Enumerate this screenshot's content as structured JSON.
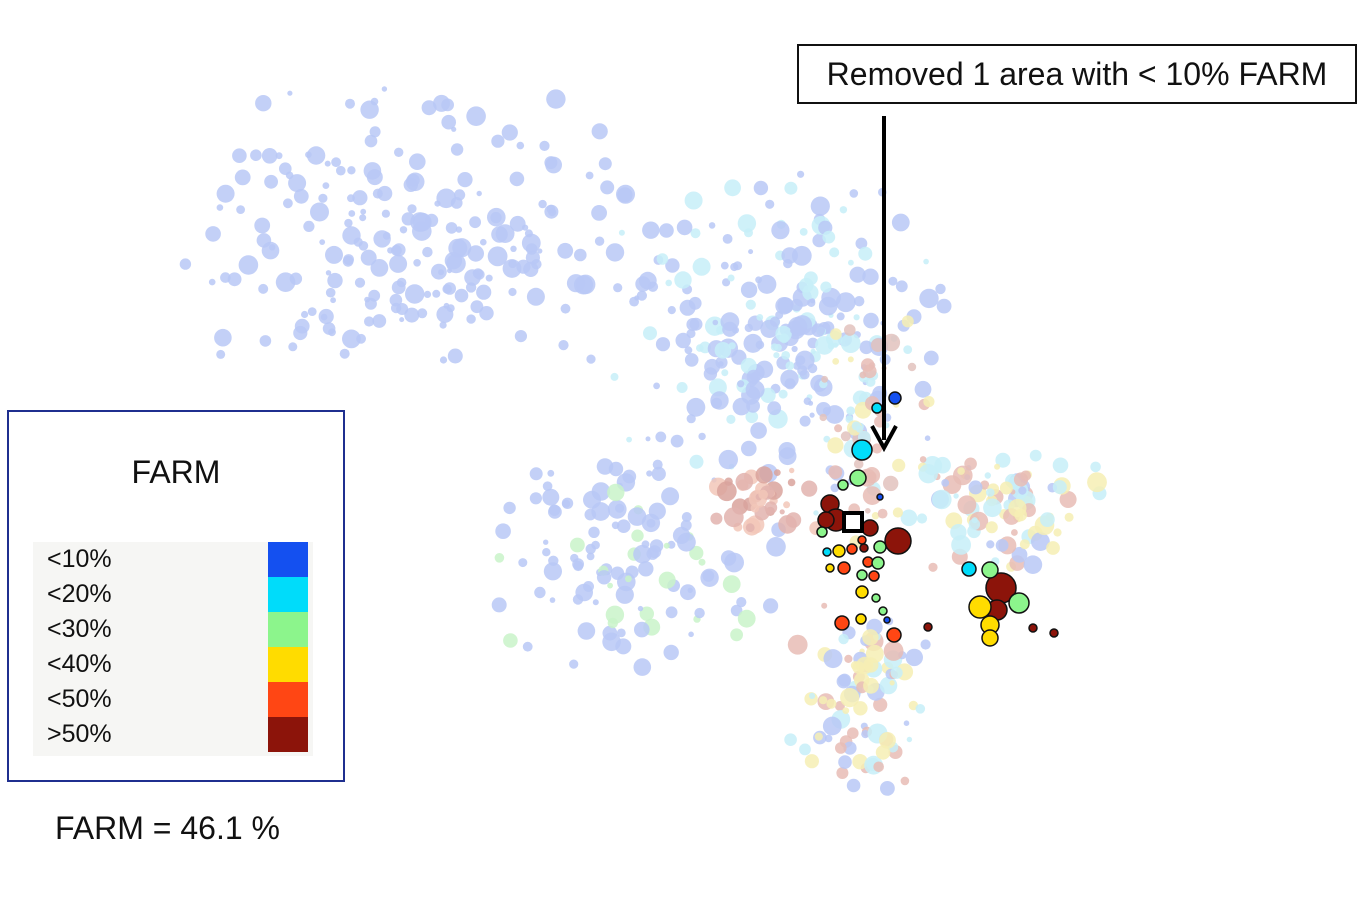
{
  "chart_data": {
    "type": "scatter",
    "title": "",
    "legend": {
      "title": "FARM",
      "placement": "left",
      "entries": [
        {
          "label": "<10%",
          "color": "#1450f0"
        },
        {
          "label": "<20%",
          "color": "#00dcfa"
        },
        {
          "label": "<30%",
          "color": "#8cf58c"
        },
        {
          "label": "<40%",
          "color": "#ffdc00"
        },
        {
          "label": "<50%",
          "color": "#ff4614"
        },
        {
          "label": ">50%",
          "color": "#8c140a"
        }
      ]
    },
    "annotation": "Removed 1 area with < 10% FARM",
    "summary": "FARM = 46.1 %",
    "highlighted_points": [
      {
        "category": ">50%",
        "x": 830,
        "y": 504,
        "r": 9
      },
      {
        "category": ">50%",
        "x": 836,
        "y": 520,
        "r": 11
      },
      {
        "category": ">50%",
        "x": 826,
        "y": 520,
        "r": 8
      },
      {
        "category": ">50%",
        "x": 898,
        "y": 541,
        "r": 13
      },
      {
        "category": ">50%",
        "x": 870,
        "y": 528,
        "r": 8
      },
      {
        "category": ">50%",
        "x": 1001,
        "y": 588,
        "r": 15
      },
      {
        "category": ">50%",
        "x": 997,
        "y": 610,
        "r": 10
      },
      {
        "category": ">50%",
        "x": 928,
        "y": 627,
        "r": 4
      },
      {
        "category": ">50%",
        "x": 1033,
        "y": 628,
        "r": 4
      },
      {
        "category": ">50%",
        "x": 1054,
        "y": 633,
        "r": 4
      },
      {
        "category": ">50%",
        "x": 864,
        "y": 548,
        "r": 4
      },
      {
        "category": "<50%",
        "x": 852,
        "y": 549,
        "r": 5
      },
      {
        "category": "<50%",
        "x": 844,
        "y": 568,
        "r": 6
      },
      {
        "category": "<50%",
        "x": 868,
        "y": 562,
        "r": 5
      },
      {
        "category": "<50%",
        "x": 874,
        "y": 576,
        "r": 5
      },
      {
        "category": "<50%",
        "x": 842,
        "y": 623,
        "r": 7
      },
      {
        "category": "<50%",
        "x": 894,
        "y": 635,
        "r": 7
      },
      {
        "category": "<50%",
        "x": 862,
        "y": 540,
        "r": 4
      },
      {
        "category": "<40%",
        "x": 839,
        "y": 551,
        "r": 6
      },
      {
        "category": "<40%",
        "x": 862,
        "y": 592,
        "r": 6
      },
      {
        "category": "<40%",
        "x": 980,
        "y": 607,
        "r": 11
      },
      {
        "category": "<40%",
        "x": 990,
        "y": 625,
        "r": 9
      },
      {
        "category": "<40%",
        "x": 990,
        "y": 638,
        "r": 8
      },
      {
        "category": "<40%",
        "x": 830,
        "y": 568,
        "r": 4
      },
      {
        "category": "<40%",
        "x": 861,
        "y": 619,
        "r": 5
      },
      {
        "category": "<30%",
        "x": 858,
        "y": 478,
        "r": 8
      },
      {
        "category": "<30%",
        "x": 843,
        "y": 485,
        "r": 5
      },
      {
        "category": "<30%",
        "x": 880,
        "y": 547,
        "r": 6
      },
      {
        "category": "<30%",
        "x": 822,
        "y": 532,
        "r": 5
      },
      {
        "category": "<30%",
        "x": 862,
        "y": 575,
        "r": 5
      },
      {
        "category": "<30%",
        "x": 878,
        "y": 563,
        "r": 6
      },
      {
        "category": "<30%",
        "x": 990,
        "y": 570,
        "r": 8
      },
      {
        "category": "<30%",
        "x": 1019,
        "y": 603,
        "r": 10
      },
      {
        "category": "<30%",
        "x": 876,
        "y": 598,
        "r": 4
      },
      {
        "category": "<30%",
        "x": 883,
        "y": 611,
        "r": 4
      },
      {
        "category": "<20%",
        "x": 862,
        "y": 450,
        "r": 10
      },
      {
        "category": "<20%",
        "x": 877,
        "y": 408,
        "r": 5
      },
      {
        "category": "<20%",
        "x": 969,
        "y": 569,
        "r": 7
      },
      {
        "category": "<20%",
        "x": 827,
        "y": 552,
        "r": 4
      },
      {
        "category": "<10%",
        "x": 895,
        "y": 398,
        "r": 6
      },
      {
        "category": "<10%",
        "x": 880,
        "y": 497,
        "r": 3
      },
      {
        "category": "<10%",
        "x": 887,
        "y": 620,
        "r": 3
      }
    ],
    "faded_points_note": "",
    "removed_marker": {
      "x": 853,
      "y": 522
    }
  }
}
